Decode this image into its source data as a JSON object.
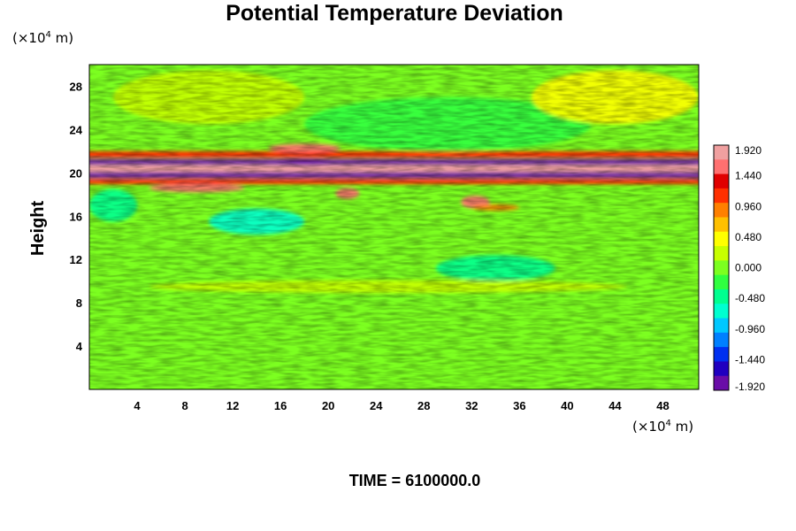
{
  "chart_data": {
    "type": "heatmap",
    "title": "Potential Temperature Deviation",
    "ylabel": "Height",
    "x_unit": {
      "prefix": "(×10",
      "exp": "4",
      "suffix": " m)"
    },
    "y_unit": {
      "prefix": "(×10",
      "exp": "4",
      "suffix": " m)"
    },
    "xlim": [
      0,
      51
    ],
    "ylim": [
      0,
      30
    ],
    "x_ticks": [
      "4",
      "8",
      "12",
      "16",
      "20",
      "24",
      "28",
      "32",
      "36",
      "40",
      "44",
      "48"
    ],
    "y_ticks": [
      "4",
      "8",
      "12",
      "16",
      "20",
      "24",
      "28"
    ],
    "colorbar": {
      "range": [
        -1.92,
        1.92
      ],
      "tick_labels": [
        "1.920",
        "1.440",
        "0.960",
        "0.480",
        "0.000",
        "-0.480",
        "-0.960",
        "-1.440",
        "-1.920"
      ],
      "colors": [
        "#6a0da8",
        "#2000c0",
        "#0030f0",
        "#0080ff",
        "#00c8ff",
        "#00ffd0",
        "#00ff90",
        "#30ff40",
        "#7cff20",
        "#c8ff00",
        "#ffff00",
        "#ffc000",
        "#ff8000",
        "#ff3000",
        "#e00000",
        "#ff7070",
        "#f0a0a0"
      ]
    },
    "features": [
      {
        "kind": "band",
        "y_center": 20.3,
        "thickness": 0.9,
        "value": 1.92
      },
      {
        "kind": "band",
        "y_center": 21.0,
        "thickness": 0.5,
        "value": -1.9
      },
      {
        "kind": "band",
        "y_center": 19.8,
        "thickness": 0.5,
        "value": -1.9
      },
      {
        "kind": "band",
        "y_center": 21.7,
        "thickness": 0.6,
        "value": 1.2
      },
      {
        "kind": "band",
        "y_center": 19.2,
        "thickness": 0.5,
        "value": 1.1
      },
      {
        "kind": "blob",
        "x": 18,
        "y": 22.3,
        "rx": 3,
        "ry": 0.4,
        "value": 1.5
      },
      {
        "kind": "blob",
        "x": 21.6,
        "y": 18.1,
        "rx": 1,
        "ry": 0.5,
        "value": 1.6
      },
      {
        "kind": "blob",
        "x": 32.3,
        "y": 17.3,
        "rx": 1.2,
        "ry": 0.6,
        "value": 1.5
      },
      {
        "kind": "blob",
        "x": 34,
        "y": 16.8,
        "rx": 2,
        "ry": 0.3,
        "value": 1.0
      },
      {
        "kind": "blob",
        "x": 9,
        "y": 18.6,
        "rx": 4,
        "ry": 0.4,
        "value": 1.5
      },
      {
        "kind": "blob",
        "x": 18,
        "y": 21.0,
        "rx": 4,
        "ry": 0.3,
        "value": -1.9
      },
      {
        "kind": "blob",
        "x": 14,
        "y": 15.5,
        "rx": 4,
        "ry": 1.2,
        "value": -0.6
      },
      {
        "kind": "blob",
        "x": 34,
        "y": 11.2,
        "rx": 5,
        "ry": 1.2,
        "value": -0.5
      },
      {
        "kind": "blob",
        "x": 30,
        "y": 24.5,
        "rx": 12,
        "ry": 2.5,
        "value": -0.3
      },
      {
        "kind": "blob",
        "x": 44,
        "y": 27,
        "rx": 7,
        "ry": 2.5,
        "value": 0.35
      },
      {
        "kind": "blob",
        "x": 10,
        "y": 27,
        "rx": 8,
        "ry": 2.5,
        "value": 0.25
      },
      {
        "kind": "blob",
        "x": 2,
        "y": 17,
        "rx": 2,
        "ry": 1.5,
        "value": -0.4
      },
      {
        "kind": "blob",
        "x": 25,
        "y": 9.5,
        "rx": 20,
        "ry": 0.6,
        "value": 0.25
      }
    ],
    "footer": "TIME = 6100000.0"
  }
}
